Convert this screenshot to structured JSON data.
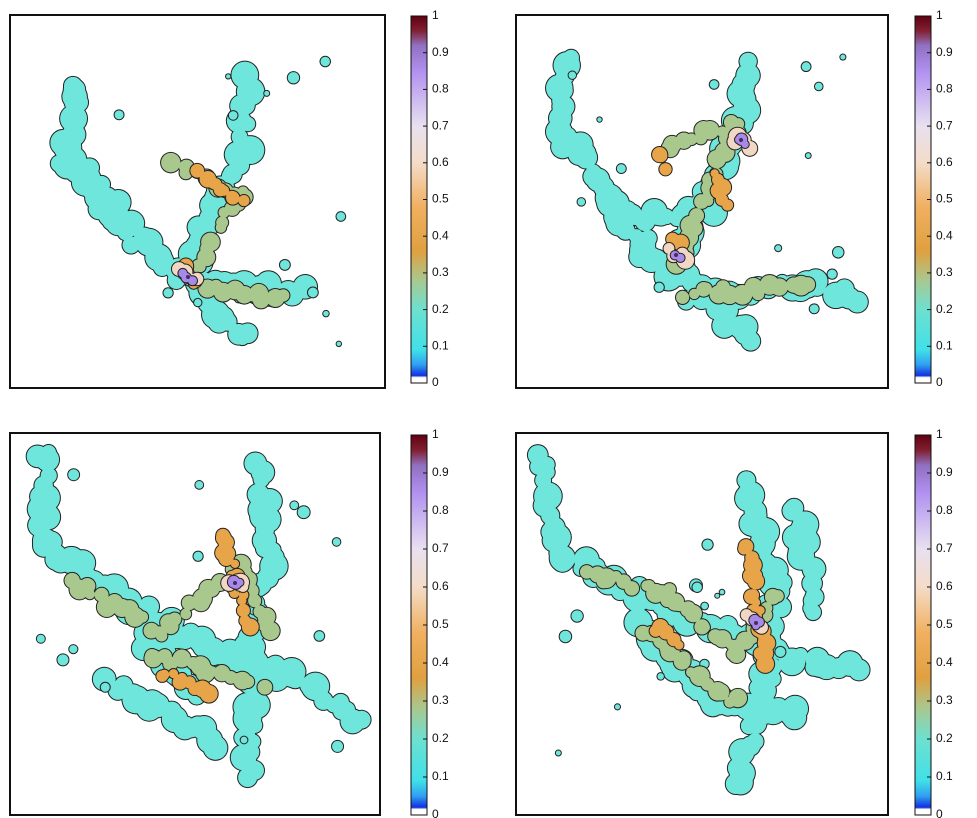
{
  "chart_data": [
    {
      "type": "contour",
      "colorbar": {
        "lim": [
          0,
          1
        ],
        "ticks": [
          0,
          0.1,
          0.2,
          0.3,
          0.4,
          0.5,
          0.6,
          0.7,
          0.8,
          0.9,
          1
        ]
      }
    },
    {
      "type": "contour",
      "colorbar": {
        "lim": [
          0,
          1
        ],
        "ticks": [
          0,
          0.1,
          0.2,
          0.3,
          0.4,
          0.5,
          0.6,
          0.7,
          0.8,
          0.9,
          1
        ]
      }
    },
    {
      "type": "contour",
      "colorbar": {
        "lim": [
          0,
          1
        ],
        "ticks": [
          0,
          0.1,
          0.2,
          0.3,
          0.4,
          0.5,
          0.6,
          0.7,
          0.8,
          0.9,
          1
        ]
      }
    },
    {
      "type": "contour",
      "colorbar": {
        "lim": [
          0,
          1
        ],
        "ticks": [
          0,
          0.1,
          0.2,
          0.3,
          0.4,
          0.5,
          0.6,
          0.7,
          0.8,
          0.9,
          1
        ]
      }
    }
  ]
}
